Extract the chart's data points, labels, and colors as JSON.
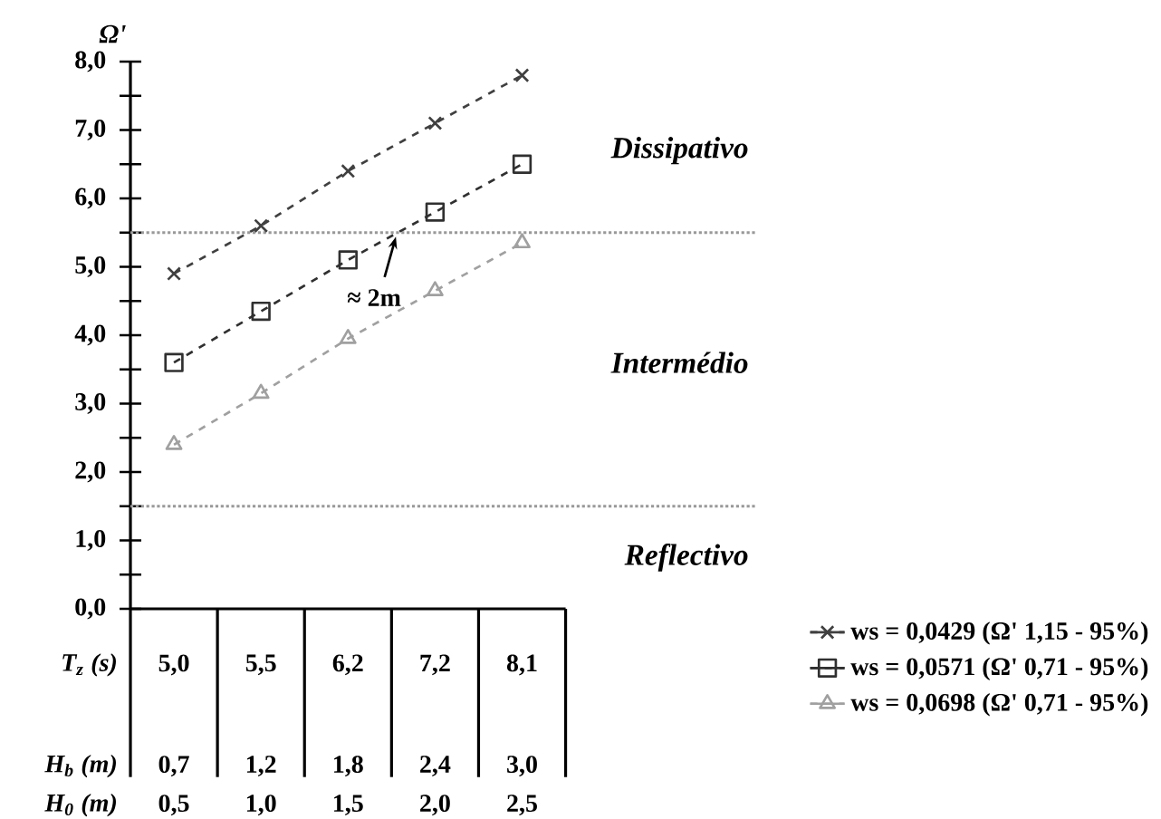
{
  "chart_data": {
    "type": "line",
    "categories": [
      "5,0",
      "5,5",
      "6,2",
      "7,2",
      "8,1"
    ],
    "xlabel": "T$_{z}$ (s)",
    "ylabel": "Ω'",
    "ylim": [
      0,
      8
    ],
    "yticks": [
      {
        "value": 0,
        "label": "0,0"
      },
      {
        "value": 0.5,
        "label": null
      },
      {
        "value": 1,
        "label": "1,0"
      },
      {
        "value": 1.5,
        "label": null
      },
      {
        "value": 2,
        "label": "2,0"
      },
      {
        "value": 2.5,
        "label": null
      },
      {
        "value": 3,
        "label": "3,0"
      },
      {
        "value": 3.5,
        "label": null
      },
      {
        "value": 4,
        "label": "4,0"
      },
      {
        "value": 4.5,
        "label": null
      },
      {
        "value": 5,
        "label": "5,0"
      },
      {
        "value": 5.5,
        "label": null
      },
      {
        "value": 6,
        "label": "6,0"
      },
      {
        "value": 6.5,
        "label": null
      },
      {
        "value": 7,
        "label": "7,0"
      },
      {
        "value": 7.5,
        "label": null
      },
      {
        "value": 8,
        "label": "8,0"
      }
    ],
    "series": [
      {
        "name": "ws = 0,0429 (Ω'    1,15 - 95%)",
        "color": "#404040",
        "marker": "cross",
        "line_style": "dashed",
        "values": [
          4.9,
          5.6,
          6.4,
          7.1,
          7.8
        ]
      },
      {
        "name": "ws = 0,0571 (Ω'    0,71 - 95%)",
        "color": "#303030",
        "marker": "square",
        "line_style": "dashed",
        "values": [
          3.6,
          4.35,
          5.1,
          5.8,
          6.5
        ]
      },
      {
        "name": "ws = 0,0698 (Ω'    0,71 - 95%)",
        "color": "#a0a0a0",
        "marker": "triangle",
        "line_style": "dashed",
        "values": [
          2.4,
          3.15,
          3.95,
          4.65,
          5.35
        ]
      }
    ],
    "ref_lines": [
      {
        "axis": "y",
        "value": 5.5,
        "color": "#999999",
        "line_style": "dotted"
      },
      {
        "axis": "y",
        "value": 1.5,
        "color": "#999999",
        "line_style": "dotted"
      }
    ],
    "annotations": [
      "Dissipativo",
      "Intermédio",
      "Reflectivo",
      {
        "text": "≈ 2m",
        "y": 5.5
      },
      "H$_{b}$ (m)",
      "0,7",
      "1,2",
      "1,8",
      "2,4",
      "3,0",
      "H$_{0}$ (m)",
      "0,5",
      "1,0",
      "1,5",
      "2,0",
      "2,5"
    ],
    "grid": false,
    "legend": "bottom right"
  }
}
